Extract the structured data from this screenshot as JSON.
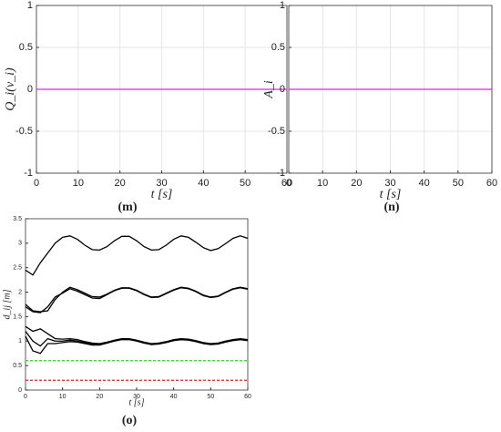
{
  "chart_data": [
    {
      "type": "line",
      "caption": "(m)",
      "ylabel": "Q_i(v_i)",
      "xlabel": "t  [s]",
      "xlim": [
        0,
        60
      ],
      "ylim": [
        -1,
        1
      ],
      "xticks": [
        0,
        10,
        20,
        30,
        40,
        50,
        60
      ],
      "yticks": [
        -1,
        -0.5,
        0,
        0.5,
        1
      ],
      "grid": true,
      "x": [
        0,
        60
      ],
      "series": [
        {
          "color": "#e020e0",
          "values": [
            0,
            0
          ]
        }
      ]
    },
    {
      "type": "line",
      "caption": "(n)",
      "ylabel": "A_i",
      "xlabel": "t  [s]",
      "xlim": [
        0,
        60
      ],
      "ylim": [
        -1,
        1
      ],
      "xticks": [
        0,
        10,
        20,
        30,
        40,
        50,
        60
      ],
      "yticks": [
        -1,
        -0.5,
        0,
        0.5,
        1
      ],
      "grid": true,
      "x": [
        0,
        60
      ],
      "series": [
        {
          "color": "#e020e0",
          "values": [
            0,
            0
          ]
        }
      ]
    },
    {
      "type": "line",
      "caption": "(o)",
      "ylabel": "d_ij [m]",
      "xlabel": "t  [s]",
      "xlim": [
        0,
        60
      ],
      "ylim": [
        0,
        3.5
      ],
      "xticks": [
        0,
        10,
        20,
        30,
        40,
        50,
        60
      ],
      "yticks": [
        0,
        0.5,
        1,
        1.5,
        2,
        2.5,
        3,
        3.5
      ],
      "grid": false,
      "x": [
        0,
        2,
        4,
        6,
        8,
        10,
        12,
        14,
        16,
        18,
        20,
        22,
        24,
        26,
        28,
        30,
        32,
        34,
        36,
        38,
        40,
        42,
        44,
        46,
        48,
        50,
        52,
        54,
        56,
        58,
        60
      ],
      "series": [
        {
          "color": "#000000",
          "values": [
            2.45,
            2.35,
            2.6,
            2.8,
            3.0,
            3.12,
            3.15,
            3.08,
            2.96,
            2.87,
            2.86,
            2.93,
            3.05,
            3.14,
            3.14,
            3.05,
            2.93,
            2.86,
            2.87,
            2.96,
            3.08,
            3.15,
            3.12,
            3.02,
            2.91,
            2.85,
            2.89,
            2.99,
            3.1,
            3.15,
            3.1
          ]
        },
        {
          "color": "#000000",
          "values": [
            1.75,
            1.62,
            1.6,
            1.62,
            1.85,
            2.0,
            2.1,
            2.05,
            1.98,
            1.91,
            1.9,
            1.96,
            2.04,
            2.09,
            2.09,
            2.04,
            1.96,
            1.9,
            1.91,
            1.98,
            2.05,
            2.1,
            2.08,
            2.02,
            1.94,
            1.9,
            1.92,
            2.0,
            2.07,
            2.1,
            2.07
          ]
        },
        {
          "color": "#000000",
          "values": [
            1.7,
            1.6,
            1.58,
            1.7,
            1.9,
            1.98,
            2.07,
            2.02,
            1.95,
            1.88,
            1.87,
            1.95,
            2.03,
            2.08,
            2.08,
            2.03,
            1.95,
            1.89,
            1.9,
            1.97,
            2.04,
            2.09,
            2.07,
            2.01,
            1.93,
            1.89,
            1.91,
            1.99,
            2.06,
            2.09,
            2.06
          ]
        },
        {
          "color": "#000000",
          "values": [
            1.3,
            1.2,
            1.25,
            1.15,
            1.05,
            1.04,
            1.05,
            1.03,
            0.99,
            0.96,
            0.95,
            0.98,
            1.02,
            1.05,
            1.05,
            1.02,
            0.98,
            0.95,
            0.96,
            0.99,
            1.03,
            1.05,
            1.04,
            1.01,
            0.97,
            0.95,
            0.96,
            1.0,
            1.03,
            1.05,
            1.03
          ]
        },
        {
          "color": "#000000",
          "values": [
            1.2,
            1.0,
            0.9,
            1.05,
            1.0,
            1.0,
            1.02,
            1.0,
            0.97,
            0.94,
            0.94,
            0.97,
            1.01,
            1.04,
            1.04,
            1.01,
            0.97,
            0.94,
            0.95,
            0.98,
            1.02,
            1.04,
            1.03,
            1.0,
            0.96,
            0.94,
            0.95,
            0.99,
            1.02,
            1.04,
            1.02
          ]
        },
        {
          "color": "#000000",
          "values": [
            1.1,
            0.8,
            0.75,
            0.95,
            0.95,
            0.97,
            0.99,
            0.98,
            0.95,
            0.92,
            0.92,
            0.96,
            1.0,
            1.03,
            1.03,
            1.0,
            0.96,
            0.93,
            0.94,
            0.97,
            1.01,
            1.03,
            1.02,
            0.99,
            0.95,
            0.93,
            0.94,
            0.98,
            1.01,
            1.03,
            1.01
          ]
        },
        {
          "color": "#22dd22",
          "style": "dashed",
          "x": [
            0,
            60
          ],
          "values": [
            0.6,
            0.6
          ]
        },
        {
          "color": "#dd2222",
          "style": "dashed",
          "x": [
            0,
            60
          ],
          "values": [
            0.2,
            0.2
          ]
        }
      ]
    }
  ]
}
